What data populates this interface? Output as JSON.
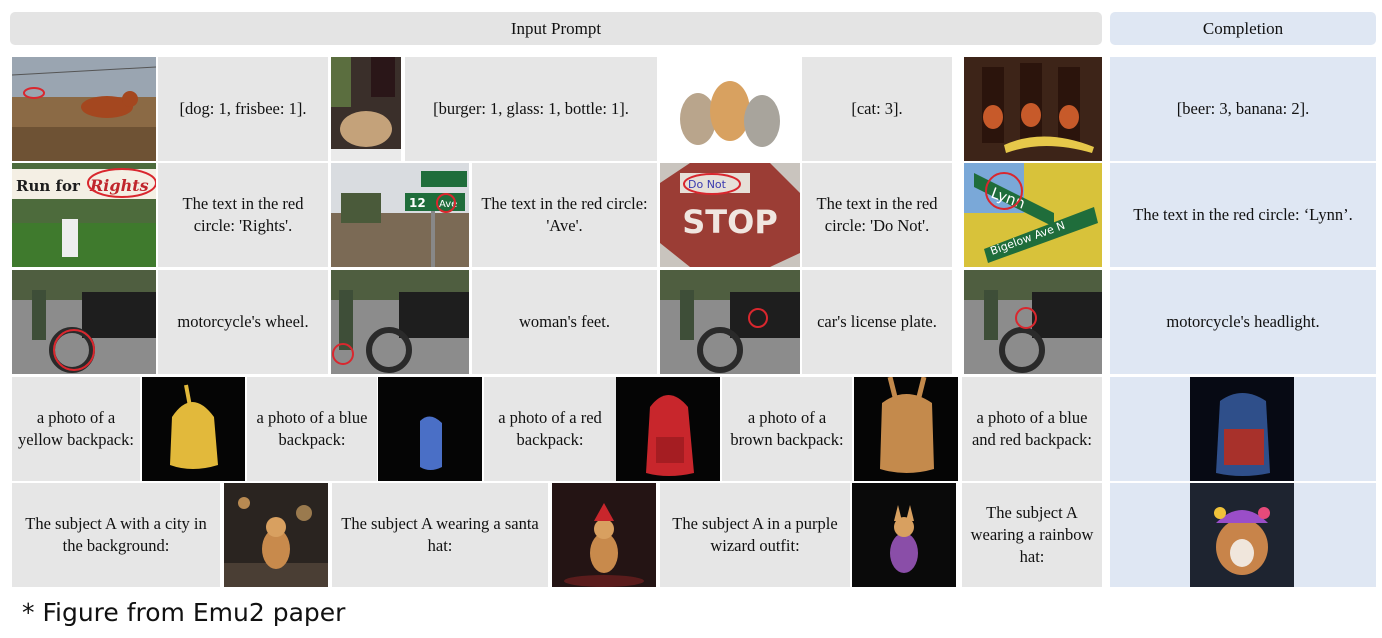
{
  "header": {
    "input_label": "Input Prompt",
    "completion_label": "Completion"
  },
  "rows": [
    {
      "texts": [
        "[dog: 1, frisbee: 1].",
        "[burger: 1, glass: 1, bottle: 1].",
        "[cat: 3]."
      ],
      "completion": "[beer: 3, banana: 2]."
    },
    {
      "texts": [
        "The text in the red circle: 'Rights'.",
        "The text in the red circle: 'Ave'.",
        "The text in the red circle: 'Do Not'."
      ],
      "completion": "The text in the red circle: ‘Lynn’.",
      "image_text": {
        "sign_rights": "Rights",
        "sign_run": "Run for",
        "sign_12": "12",
        "sign_ave": "Ave",
        "sign_stop": "STOP",
        "sign_donot": "Do Not",
        "sign_lynn": "Lynn",
        "sign_bigelow": "Bigelow Ave N"
      }
    },
    {
      "texts": [
        "motorcycle's wheel.",
        "woman's feet.",
        "car's license plate."
      ],
      "completion": "motorcycle's headlight."
    },
    {
      "texts": [
        "a photo of a yellow backpack:",
        "a photo of a blue backpack:",
        "a photo of a red backpack:",
        "a photo of a brown backpack:"
      ],
      "completion": "a photo of a blue and red backpack:"
    },
    {
      "texts": [
        "The subject A with a city in the background:",
        "The subject A wearing a santa hat:",
        "The subject A in a purple wizard outfit:"
      ],
      "completion": "The subject A wearing a rainbow hat:"
    }
  ],
  "caption": "* Figure from Emu2 paper",
  "colors": {
    "prompt_bg": "#e6e6e6",
    "completion_bg": "#dfe7f3",
    "circle_red": "#d9272e"
  }
}
